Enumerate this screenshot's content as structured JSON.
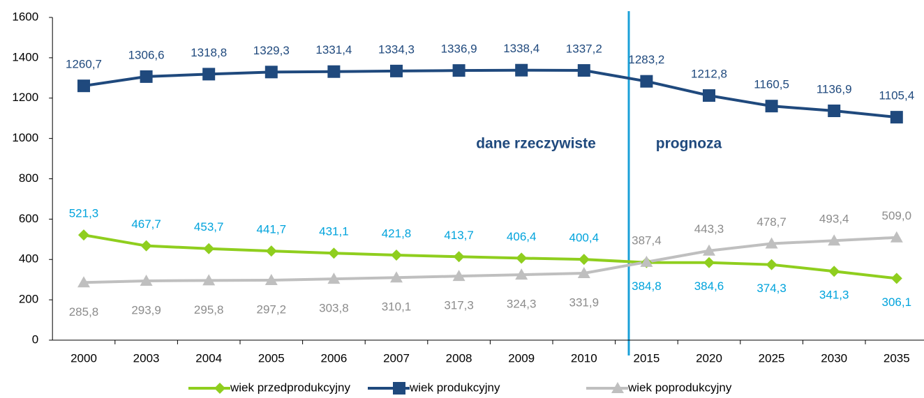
{
  "chart_data": {
    "type": "line",
    "categories": [
      "2000",
      "2003",
      "2004",
      "2005",
      "2006",
      "2007",
      "2008",
      "2009",
      "2010",
      "2015",
      "2020",
      "2025",
      "2030",
      "2035"
    ],
    "series": [
      {
        "name": "wiek przedprodukcyjny",
        "color": "#8fce1e",
        "label_color": "#00a3dc",
        "marker": "diamond",
        "values": [
          521.3,
          467.7,
          453.7,
          441.7,
          431.1,
          421.8,
          413.7,
          406.4,
          400.4,
          384.8,
          384.6,
          374.3,
          341.3,
          306.1
        ],
        "value_labels": [
          "521,3",
          "467,7",
          "453,7",
          "441,7",
          "431,1",
          "421,8",
          "413,7",
          "406,4",
          "400,4",
          "384,8",
          "384,6",
          "374,3",
          "341,3",
          "306,1"
        ]
      },
      {
        "name": "wiek produkcyjny",
        "color": "#1f497d",
        "label_color": "#1f497d",
        "marker": "square",
        "values": [
          1260.7,
          1306.6,
          1318.8,
          1329.3,
          1331.4,
          1334.3,
          1336.9,
          1338.4,
          1337.2,
          1283.2,
          1212.8,
          1160.5,
          1136.9,
          1105.4
        ],
        "value_labels": [
          "1260,7",
          "1306,6",
          "1318,8",
          "1329,3",
          "1331,4",
          "1334,3",
          "1336,9",
          "1338,4",
          "1337,2",
          "1283,2",
          "1212,8",
          "1160,5",
          "1136,9",
          "1105,4"
        ]
      },
      {
        "name": "wiek poprodukcyjny",
        "color": "#bfbfbf",
        "label_color": "#8c8c8c",
        "marker": "triangle",
        "values": [
          285.8,
          293.9,
          295.8,
          297.2,
          303.8,
          310.1,
          317.3,
          324.3,
          331.9,
          387.4,
          443.3,
          478.7,
          493.4,
          509.0
        ],
        "value_labels": [
          "285,8",
          "293,9",
          "295,8",
          "297,2",
          "303,8",
          "310,1",
          "317,3",
          "324,3",
          "331,9",
          "387,4",
          "443,3",
          "478,7",
          "493,4",
          "509,0"
        ]
      }
    ],
    "annotations": [
      "dane rzeczywiste",
      "prognoza"
    ],
    "ylim": [
      0,
      1600
    ],
    "yticks": [
      0,
      200,
      400,
      600,
      800,
      1000,
      1200,
      1400,
      1600
    ],
    "grid": false,
    "legend": "bottom"
  }
}
